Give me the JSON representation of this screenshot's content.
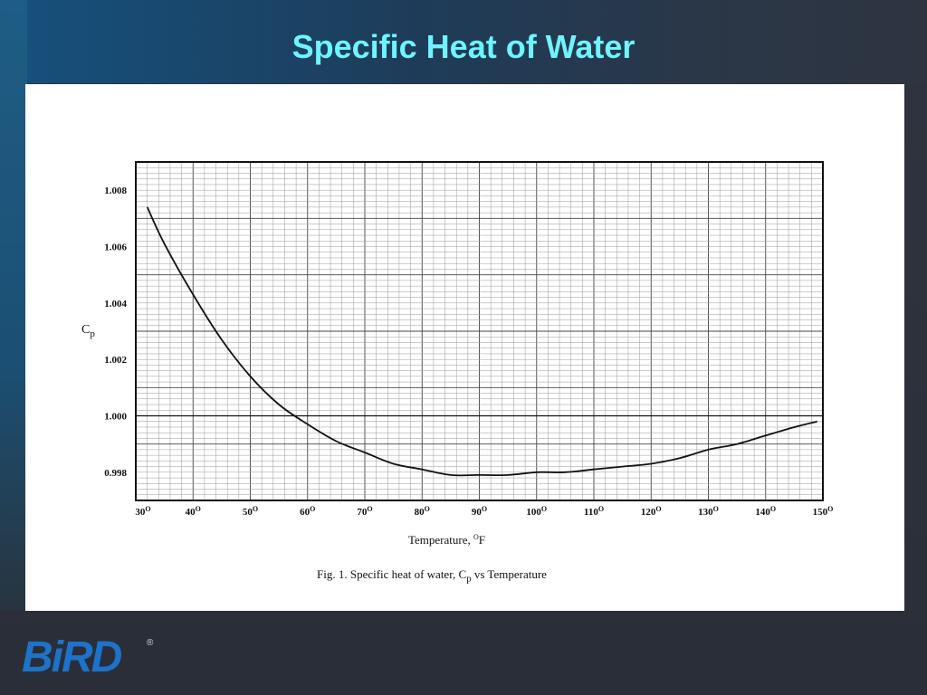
{
  "slide": {
    "title": "Specific Heat of Water",
    "logo_text": "BiRD",
    "logo_registered": "®"
  },
  "figure": {
    "caption_prefix": "Fig. 1. Specific heat of water, C",
    "caption_sub": "p",
    "caption_suffix": " vs Temperature"
  },
  "chart_data": {
    "type": "line",
    "xlabel_main": "Temperature, ",
    "xlabel_degree": "O",
    "xlabel_unit": "F",
    "ylabel_main": "C",
    "ylabel_sub": "p",
    "xlim": [
      30,
      150
    ],
    "ylim": [
      0.997,
      1.009
    ],
    "x_ticks": [
      30,
      40,
      50,
      60,
      70,
      80,
      90,
      100,
      110,
      120,
      130,
      140,
      150
    ],
    "x_tick_labels": [
      "30",
      "40",
      "50",
      "60",
      "70",
      "80",
      "90",
      "100",
      "110",
      "120",
      "130",
      "140",
      "150"
    ],
    "x_tick_degree": "O",
    "y_ticks": [
      0.998,
      1.0,
      1.002,
      1.004,
      1.006,
      1.008
    ],
    "y_tick_labels": [
      "0.998",
      "1.000",
      "1.002",
      "1.004",
      "1.006",
      "1.008"
    ],
    "reference_line": 1.0,
    "grid": true,
    "series": [
      {
        "x": [
          32,
          35,
          40,
          45,
          50,
          55,
          60,
          65,
          70,
          75,
          80,
          85,
          90,
          95,
          100,
          105,
          110,
          115,
          120,
          125,
          130,
          135,
          140,
          145,
          149
        ],
        "y": [
          1.0074,
          1.0061,
          1.0043,
          1.0027,
          1.0014,
          1.0004,
          0.9997,
          0.9991,
          0.9987,
          0.9983,
          0.9981,
          0.9979,
          0.9979,
          0.9979,
          0.998,
          0.998,
          0.9981,
          0.9982,
          0.9983,
          0.9985,
          0.9988,
          0.999,
          0.9993,
          0.9996,
          0.9998
        ]
      }
    ]
  }
}
